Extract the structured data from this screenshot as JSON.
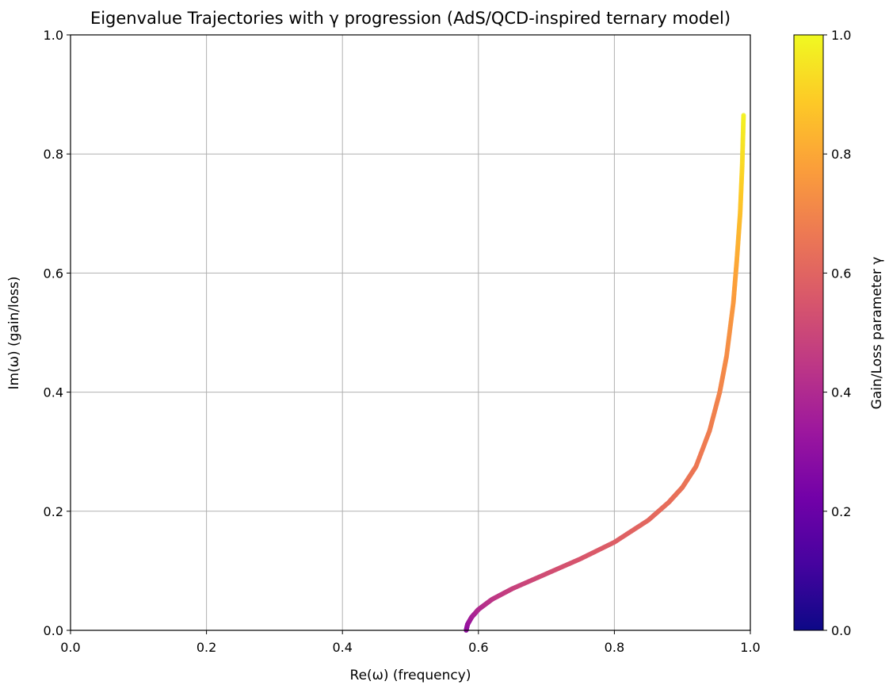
{
  "chart_data": {
    "type": "scatter",
    "title": "Eigenvalue Trajectories with γ progression (AdS/QCD-inspired ternary model)",
    "xlabel": "Re(ω)  (frequency)",
    "ylabel": "Im(ω)  (gain/loss)",
    "xlim": [
      0.0,
      1.0
    ],
    "ylim": [
      0.0,
      1.0
    ],
    "xticks": [
      "0.0",
      "0.2",
      "0.4",
      "0.6",
      "0.8",
      "1.0"
    ],
    "yticks": [
      "0.0",
      "0.2",
      "0.4",
      "0.6",
      "0.8",
      "1.0"
    ],
    "grid": true,
    "colormap": "plasma",
    "colorbar": {
      "label": "Gain/Loss parameter γ",
      "range": [
        0.0,
        1.0
      ],
      "ticks": [
        "0.0",
        "0.2",
        "0.4",
        "0.6",
        "0.8",
        "1.0"
      ],
      "colors": [
        "#0d0887",
        "#46039f",
        "#7201a8",
        "#9c179e",
        "#bd3786",
        "#d8576b",
        "#ed7953",
        "#fb9f3a",
        "#fdca26",
        "#f0f921"
      ]
    },
    "trajectory": {
      "x": [
        0.582,
        0.584,
        0.59,
        0.6,
        0.62,
        0.65,
        0.7,
        0.75,
        0.8,
        0.85,
        0.88,
        0.9,
        0.92,
        0.94,
        0.955,
        0.965,
        0.975,
        0.98,
        0.985,
        0.988,
        0.99
      ],
      "y": [
        0.0,
        0.01,
        0.022,
        0.035,
        0.052,
        0.07,
        0.095,
        0.12,
        0.148,
        0.185,
        0.215,
        0.24,
        0.275,
        0.335,
        0.4,
        0.46,
        0.55,
        0.62,
        0.7,
        0.78,
        0.865
      ],
      "gamma": [
        0.3,
        0.32,
        0.36,
        0.4,
        0.44,
        0.48,
        0.52,
        0.55,
        0.58,
        0.61,
        0.63,
        0.645,
        0.66,
        0.68,
        0.7,
        0.72,
        0.76,
        0.8,
        0.86,
        0.92,
        0.98
      ]
    }
  }
}
